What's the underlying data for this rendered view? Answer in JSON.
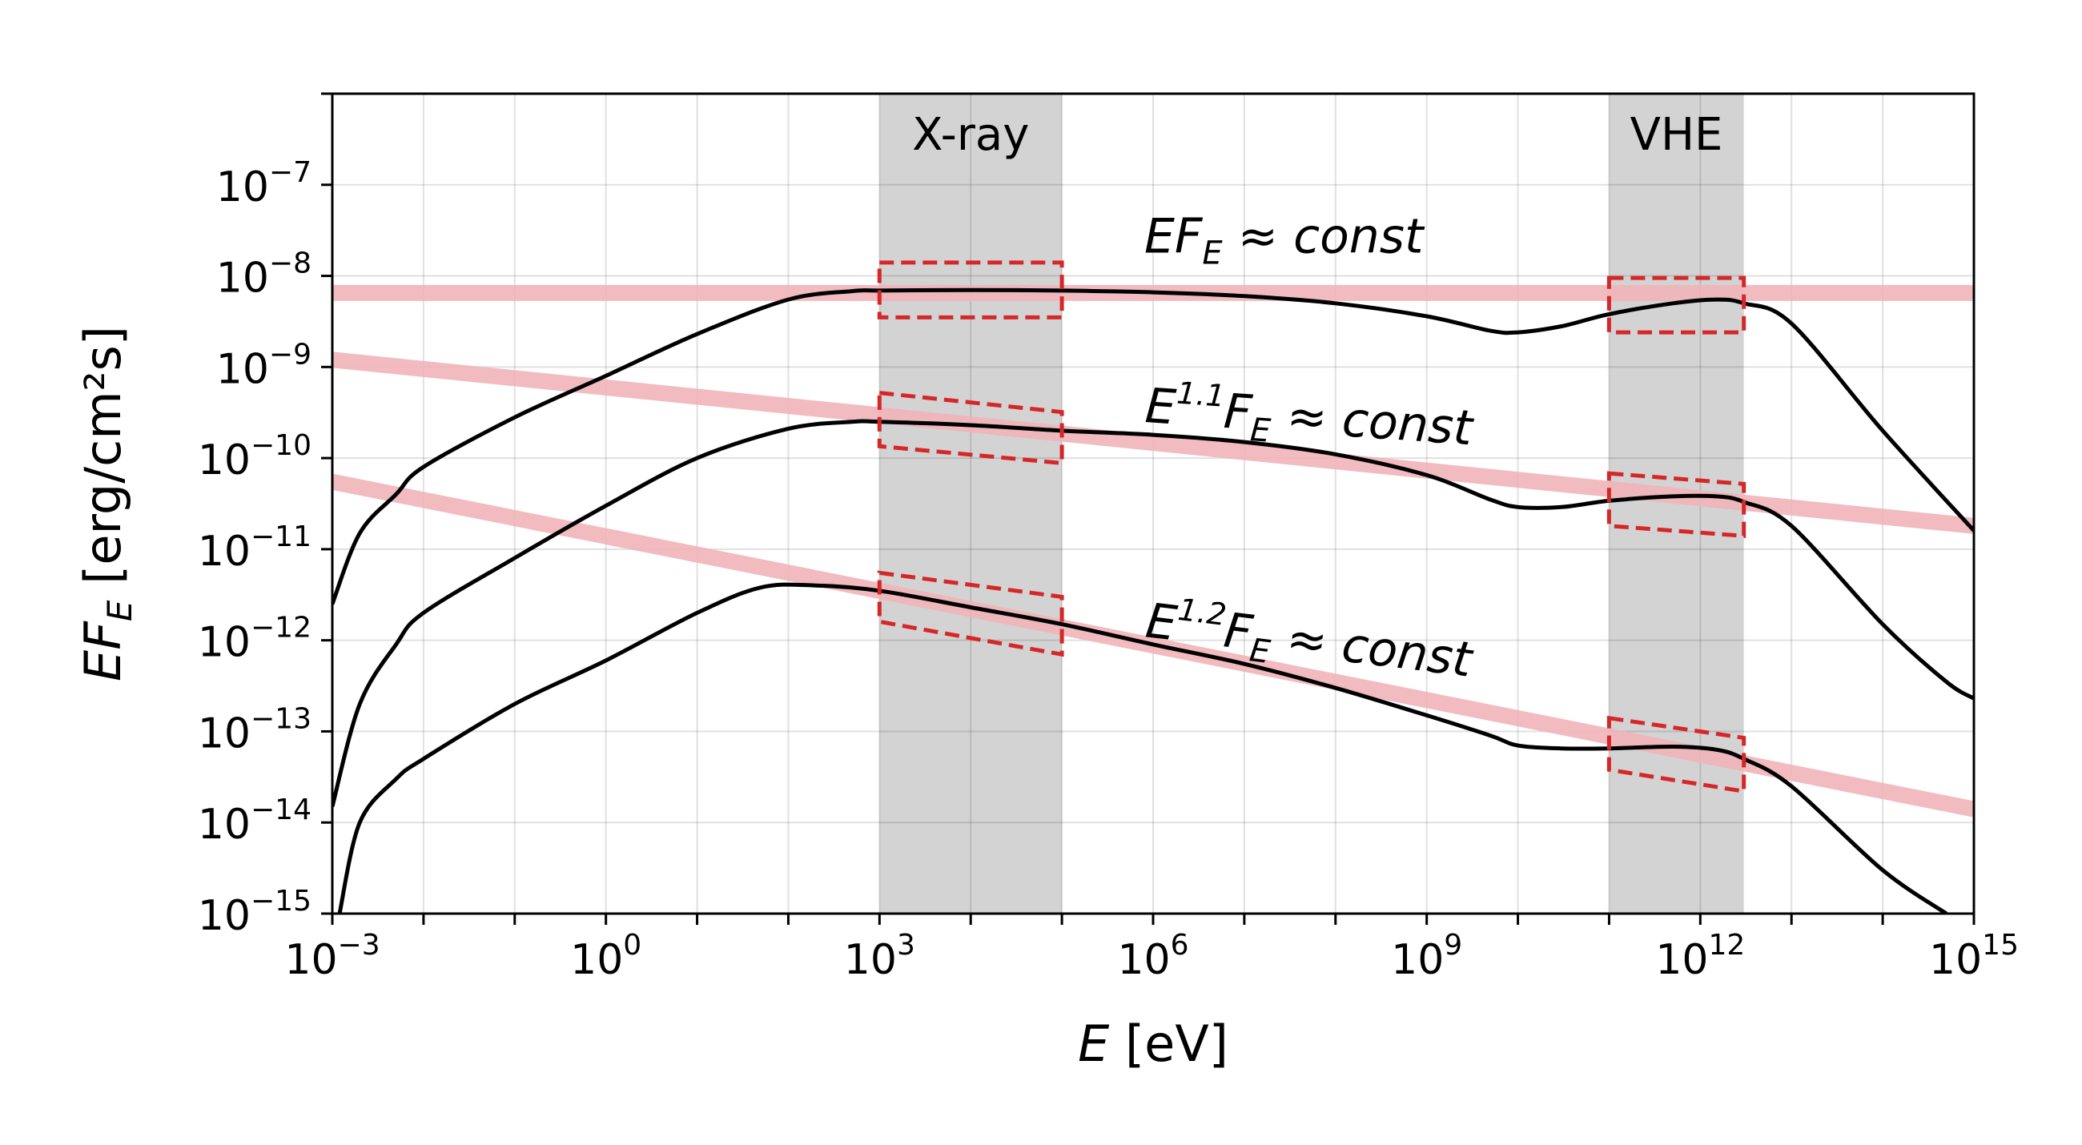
{
  "chart_data": {
    "type": "line",
    "xlabel_var": "E",
    "xlabel_unit": "[eV]",
    "ylabel_var": "EF",
    "ylabel_sub": "E",
    "ylabel_unit": "[erg/cm²s]",
    "x_scale": "log",
    "y_scale": "log",
    "xlim": [
      0.001,
      1000000000000000.0
    ],
    "ylim": [
      1e-15,
      1e-06
    ],
    "grid": true,
    "x_ticks": [
      {
        "base": "10",
        "exp": "−3",
        "value": 0.001
      },
      {
        "base": "10",
        "exp": "0",
        "value": 1
      },
      {
        "base": "10",
        "exp": "3",
        "value": 1000.0
      },
      {
        "base": "10",
        "exp": "6",
        "value": 1000000.0
      },
      {
        "base": "10",
        "exp": "9",
        "value": 1000000000.0
      },
      {
        "base": "10",
        "exp": "12",
        "value": 1000000000000.0
      },
      {
        "base": "10",
        "exp": "15",
        "value": 1000000000000000.0
      }
    ],
    "y_ticks": [
      {
        "base": "10",
        "exp": "−7",
        "value": 1e-07
      },
      {
        "base": "10",
        "exp": "−8",
        "value": 1e-08
      },
      {
        "base": "10",
        "exp": "−9",
        "value": 1e-09
      },
      {
        "base": "10",
        "exp": "−10",
        "value": 1e-10
      },
      {
        "base": "10",
        "exp": "−11",
        "value": 1e-11
      },
      {
        "base": "10",
        "exp": "−12",
        "value": 1e-12
      },
      {
        "base": "10",
        "exp": "−13",
        "value": 1e-13
      },
      {
        "base": "10",
        "exp": "−14",
        "value": 1e-14
      },
      {
        "base": "10",
        "exp": "−15",
        "value": 1e-15
      }
    ],
    "bands": [
      {
        "label": "X-ray",
        "x": [
          1000.0,
          100000.0
        ],
        "color": "#d3d3d3"
      },
      {
        "label": "VHE",
        "x": [
          100000000000.0,
          3000000000000.0
        ],
        "color": "#d3d3d3"
      }
    ],
    "reference_lines": [
      {
        "x": [
          0.001,
          1000000000000000.0
        ],
        "y": [
          6.5e-09,
          6.5e-09
        ],
        "color": "#f0b4b8"
      },
      {
        "x": [
          0.001,
          1000000000000000.0
        ],
        "y": [
          1.2e-09,
          1.8e-11
        ],
        "color": "#f0b4b8"
      },
      {
        "x": [
          0.001,
          1000000000000000.0
        ],
        "y": [
          5.5e-11,
          1.4e-14
        ],
        "color": "#f0b4b8"
      }
    ],
    "series": [
      {
        "color": "#000000",
        "x": [
          0.001,
          0.002,
          0.005,
          0.01,
          0.1,
          1,
          10,
          100,
          500,
          1000.0,
          10000.0,
          100000.0,
          1000000.0,
          10000000.0,
          100000000.0,
          1000000000.0,
          5000000000.0,
          10000000000.0,
          30000000000.0,
          100000000000.0,
          500000000000.0,
          1500000000000.0,
          3000000000000.0,
          10000000000000.0,
          100000000000000.0,
          1000000000000000.0
        ],
        "y": [
          2.5e-12,
          1.5e-11,
          4e-11,
          8e-11,
          2.8e-10,
          8e-10,
          2.3e-09,
          5.5e-09,
          6.8e-09,
          6.9e-09,
          7e-09,
          6.9e-09,
          6.6e-09,
          6e-09,
          5e-09,
          3.6e-09,
          2.5e-09,
          2.4e-09,
          2.8e-09,
          3.8e-09,
          5e-09,
          5.5e-09,
          5e-09,
          3e-09,
          2e-10,
          1.6e-11
        ]
      },
      {
        "color": "#000000",
        "x": [
          0.001,
          0.002,
          0.005,
          0.01,
          0.1,
          1,
          10,
          100,
          500,
          1000.0,
          10000.0,
          100000.0,
          1000000.0,
          10000000.0,
          100000000.0,
          1000000000.0,
          5000000000.0,
          10000000000.0,
          30000000000.0,
          100000000000.0,
          500000000000.0,
          1500000000000.0,
          3000000000000.0,
          10000000000000.0,
          100000000000000.0,
          500000000000000.0,
          1000000000000000.0
        ],
        "y": [
          1.5e-14,
          2e-13,
          9e-13,
          2e-12,
          8e-12,
          3e-11,
          1e-10,
          2.1e-10,
          2.5e-10,
          2.5e-10,
          2.3e-10,
          2e-10,
          1.8e-10,
          1.5e-10,
          1.1e-10,
          6.5e-11,
          3.5e-11,
          2.9e-11,
          2.9e-11,
          3.4e-11,
          3.8e-11,
          3.8e-11,
          3.3e-11,
          1.8e-11,
          1.5e-12,
          3.5e-13,
          2.3e-13
        ]
      },
      {
        "color": "#000000",
        "x": [
          0.0012,
          0.002,
          0.005,
          0.01,
          0.1,
          1,
          10,
          50,
          200,
          1000.0,
          10000.0,
          100000.0,
          1000000.0,
          10000000.0,
          100000000.0,
          1000000000.0,
          5000000000.0,
          10000000000.0,
          30000000000.0,
          100000000000.0,
          500000000000.0,
          1500000000000.0,
          3000000000000.0,
          10000000000000.0,
          100000000000000.0,
          500000000000000.0
        ],
        "y": [
          1e-15,
          1e-14,
          3e-14,
          5e-14,
          2e-13,
          6e-13,
          2e-12,
          3.8e-12,
          4e-12,
          3.5e-12,
          2.3e-12,
          1.5e-12,
          9e-13,
          5.5e-13,
          3e-13,
          1.5e-13,
          9e-14,
          7e-14,
          6.5e-14,
          6.5e-14,
          6.8e-14,
          6.3e-14,
          5e-14,
          2.5e-14,
          3e-15,
          1e-15
        ]
      }
    ],
    "dashed_boxes": [
      {
        "color": "#d62728",
        "corners": [
          [
            1000.0,
            1.4e-08
          ],
          [
            100000.0,
            1.4e-08
          ],
          [
            100000.0,
            3.5e-09
          ],
          [
            1000.0,
            3.5e-09
          ]
        ]
      },
      {
        "color": "#d62728",
        "corners": [
          [
            100000000000.0,
            9.5e-09
          ],
          [
            3000000000000.0,
            9.5e-09
          ],
          [
            3000000000000.0,
            2.4e-09
          ],
          [
            100000000000.0,
            2.4e-09
          ]
        ]
      },
      {
        "color": "#d62728",
        "corners": [
          [
            1000.0,
            5.2e-10
          ],
          [
            100000.0,
            3.2e-10
          ],
          [
            100000.0,
            8.8e-11
          ],
          [
            1000.0,
            1.35e-10
          ]
        ]
      },
      {
        "color": "#d62728",
        "corners": [
          [
            100000000000.0,
            6.8e-11
          ],
          [
            3000000000000.0,
            5.2e-11
          ],
          [
            3000000000000.0,
            1.4e-11
          ],
          [
            100000000000.0,
            1.8e-11
          ]
        ]
      },
      {
        "color": "#d62728",
        "corners": [
          [
            1000.0,
            5.5e-12
          ],
          [
            100000.0,
            3e-12
          ],
          [
            100000.0,
            7e-13
          ],
          [
            1000.0,
            1.6e-12
          ]
        ]
      },
      {
        "color": "#d62728",
        "corners": [
          [
            100000000000.0,
            1.4e-13
          ],
          [
            3000000000000.0,
            8.5e-14
          ],
          [
            3000000000000.0,
            2.2e-14
          ],
          [
            100000000000.0,
            3.8e-14
          ]
        ]
      }
    ],
    "annotations": [
      {
        "pre": "EF",
        "sub": "E",
        "post": " ≈ const",
        "x": 800000.0,
        "y": 1.8e-08,
        "rotate": 0
      },
      {
        "pre": "E",
        "sup": "1.1",
        "mid": "F",
        "sub": "E",
        "post": " ≈ const",
        "x": 800000.0,
        "y": 2.5e-10,
        "rotate": 4
      },
      {
        "pre": "E",
        "sup": "1.2",
        "mid": "F",
        "sub": "E",
        "post": " ≈ const",
        "x": 800000.0,
        "y": 1.1e-12,
        "rotate": 7
      }
    ]
  }
}
